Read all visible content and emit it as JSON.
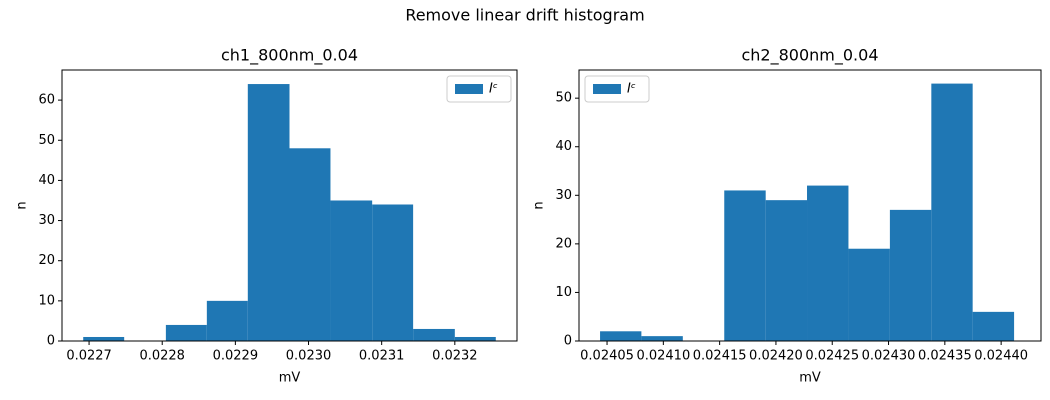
{
  "title": "Remove linear drift histogram",
  "chart_data": [
    {
      "type": "histogram",
      "title": "ch1_800nm_0.04",
      "xlabel": "mV",
      "ylabel": "n",
      "bins": [
        0.022692,
        0.022748,
        0.022805,
        0.022861,
        0.022917,
        0.022974,
        0.02303,
        0.023087,
        0.023143,
        0.0232,
        0.023256
      ],
      "series": [
        {
          "name": "Iᶜ",
          "color": "#1f77b4",
          "values": [
            1,
            0,
            4,
            10,
            64,
            48,
            35,
            34,
            3,
            1
          ]
        }
      ],
      "xlim": [
        0.022663,
        0.023285
      ],
      "xticks": [
        0.0227,
        0.0228,
        0.0229,
        {
          "value": 0.023,
          "label": "0.0230"
        },
        0.0231,
        0.0232
      ],
      "ylim": [
        0,
        67.5
      ],
      "yticks": [
        0,
        10,
        20,
        30,
        40,
        50,
        60
      ],
      "legend": "upper right"
    },
    {
      "type": "histogram",
      "title": "ch2_800nm_0.04",
      "xlabel": "mV",
      "ylabel": "n",
      "bins": [
        0.0240438,
        0.0240805,
        0.0241173,
        0.0241541,
        0.0241909,
        0.0242276,
        0.0242644,
        0.0243012,
        0.024338,
        0.0243747,
        0.0244115
      ],
      "series": [
        {
          "name": "Iᶜ",
          "color": "#1f77b4",
          "values": [
            2,
            1,
            0,
            31,
            29,
            32,
            19,
            27,
            53,
            6
          ]
        }
      ],
      "xlim": [
        0.0240251,
        0.0244354
      ],
      "xticks": [
        0.02405,
        {
          "value": 0.0241,
          "label": "0.02410"
        },
        0.02415,
        {
          "value": 0.0242,
          "label": "0.02420"
        },
        0.02425,
        {
          "value": 0.0243,
          "label": "0.02430"
        },
        0.02435,
        {
          "value": 0.0244,
          "label": "0.02440"
        }
      ],
      "ylim": [
        0,
        55.8
      ],
      "yticks": [
        0,
        10,
        20,
        30,
        40,
        50
      ],
      "legend": "upper left"
    }
  ]
}
